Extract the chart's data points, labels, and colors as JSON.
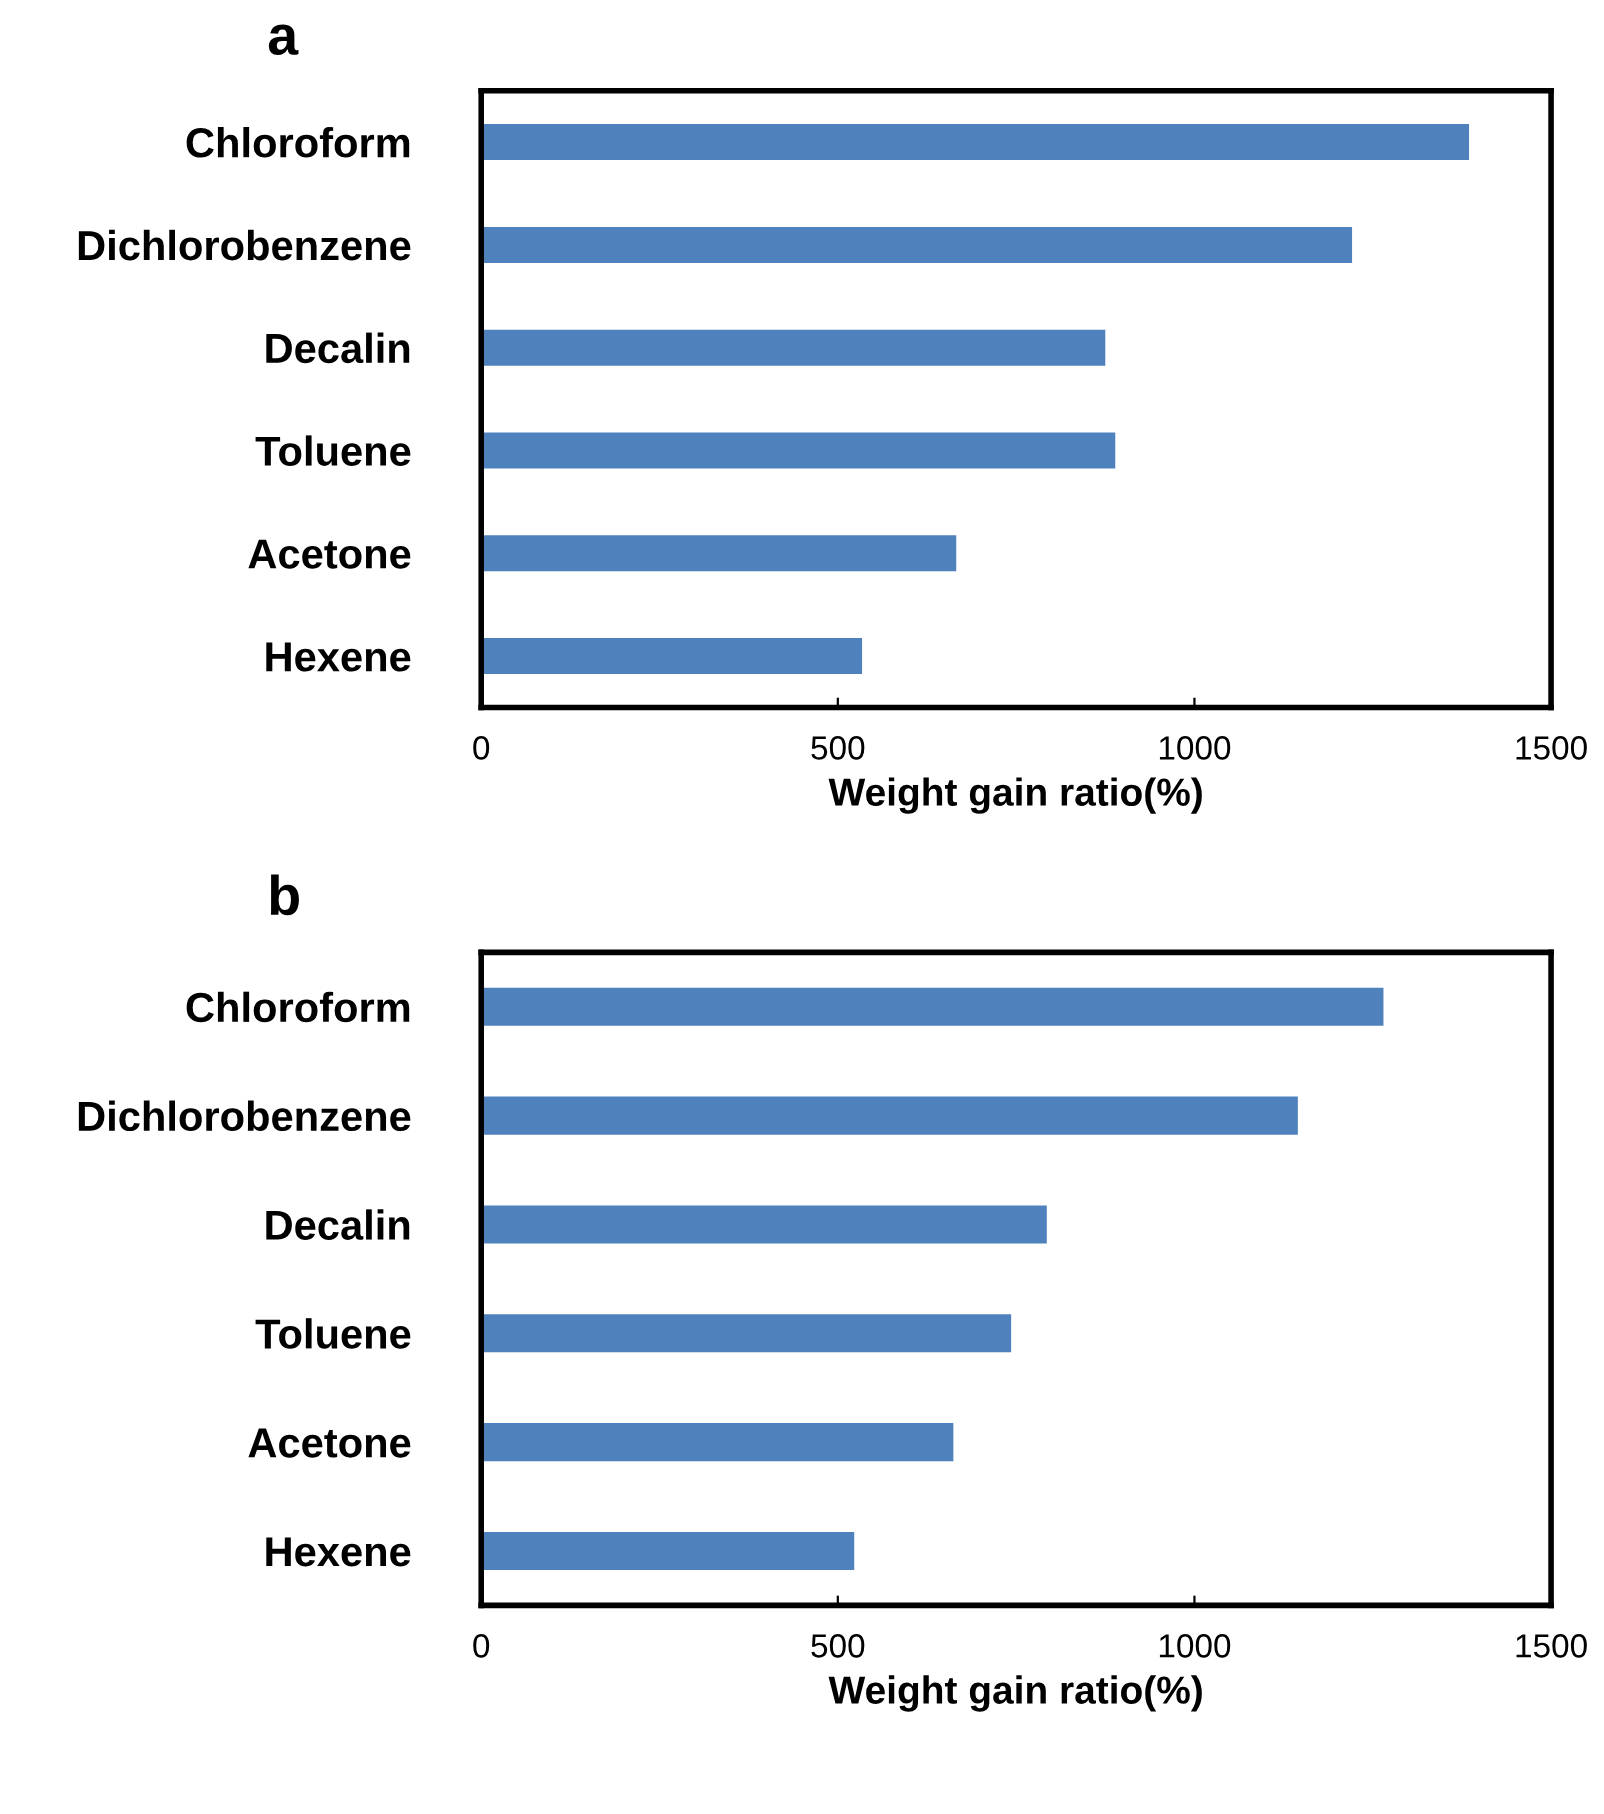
{
  "chart_data": [
    {
      "type": "bar",
      "orientation": "horizontal",
      "title": "a",
      "xlabel": "Weight gain ratio(%)",
      "categories": [
        "Chloroform",
        "Dichlorobenzene",
        "Decalin",
        "Toluene",
        "Acetone",
        "Hexene"
      ],
      "values": [
        1385,
        1221,
        875,
        889,
        666,
        534
      ],
      "color": "#4f81bd",
      "xlim": [
        0,
        1500
      ],
      "xticks": [
        0,
        500,
        1000,
        1500
      ],
      "grid": false,
      "legend": false
    },
    {
      "type": "bar",
      "orientation": "horizontal",
      "title": "b",
      "xlabel": "Weight gain ratio(%)",
      "categories": [
        "Chloroform",
        "Dichlorobenzene",
        "Decalin",
        "Toluene",
        "Acetone",
        "Hexene"
      ],
      "values": [
        1265,
        1145,
        793,
        743,
        662,
        523
      ],
      "color": "#4f81bd",
      "xlim": [
        0,
        1500
      ],
      "xticks": [
        0,
        500,
        1000,
        1500
      ],
      "grid": false,
      "legend": false
    }
  ]
}
